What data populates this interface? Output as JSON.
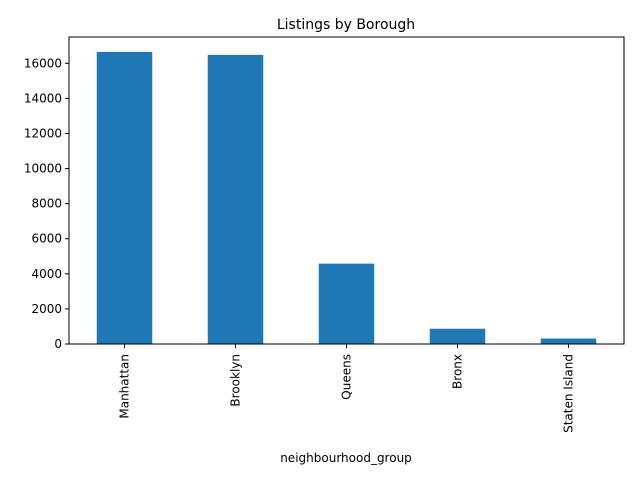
{
  "chart_data": {
    "type": "bar",
    "title": "Listings by Borough",
    "xlabel": "neighbourhood_group",
    "ylabel": "",
    "categories": [
      "Manhattan",
      "Brooklyn",
      "Queens",
      "Bronx",
      "Staten Island"
    ],
    "values": [
      16650,
      16480,
      4580,
      870,
      310
    ],
    "ylim": [
      0,
      17500
    ],
    "yticks": [
      0,
      2000,
      4000,
      6000,
      8000,
      10000,
      12000,
      14000,
      16000
    ],
    "grid": false,
    "legend": "none",
    "colors": {
      "bar": "#1f77b4",
      "axis": "#000000"
    }
  }
}
